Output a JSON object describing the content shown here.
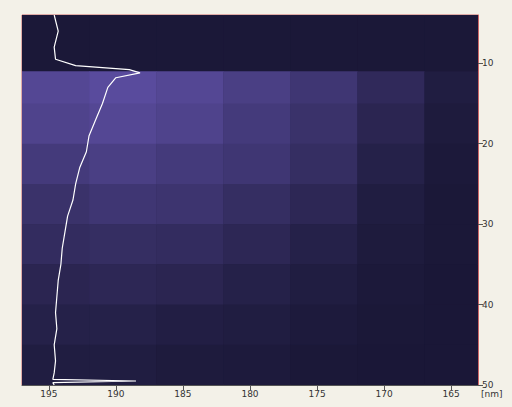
{
  "chart_data": {
    "type": "line",
    "x_label": "[nm]",
    "xlim": [
      197,
      163
    ],
    "xticks": [
      195,
      190,
      185,
      180,
      175,
      170,
      165
    ],
    "ylim": [
      50,
      4
    ],
    "yticks": [
      10,
      20,
      30,
      40,
      50
    ],
    "grid": false,
    "series": [
      {
        "color": "#ffffff",
        "x": [
          194.6,
          194.3,
          194.6,
          194.5,
          193,
          189,
          188.2,
          190,
          190.6,
          191,
          191.5,
          192,
          192.2,
          192.7,
          193,
          193.2,
          193.6,
          193.8,
          194,
          194.1,
          194.3,
          194.4,
          194.5,
          194.4,
          194.6,
          194.5,
          194.6,
          194.7,
          188.5,
          194.7,
          194.6
        ],
        "values": [
          4,
          6,
          8,
          9.5,
          10.3,
          10.8,
          11.2,
          11.8,
          13,
          15,
          17,
          19,
          21,
          23,
          25,
          27,
          29,
          31,
          33,
          35,
          37,
          39,
          41,
          43,
          45,
          47,
          48.5,
          49.3,
          49.5,
          49.7,
          50
        ]
      }
    ],
    "intensity": {
      "range": [
        0,
        1
      ],
      "x_edges": [
        197,
        192,
        187,
        182,
        177,
        172,
        167,
        163
      ],
      "y_edges": [
        4,
        11,
        15,
        20,
        25,
        30,
        35,
        40,
        45,
        50
      ],
      "cells": [
        [
          0.05,
          0.05,
          0.05,
          0.05,
          0.05,
          0.05,
          0.05
        ],
        [
          0.6,
          0.65,
          0.6,
          0.5,
          0.4,
          0.25,
          0.1
        ],
        [
          0.55,
          0.6,
          0.55,
          0.45,
          0.35,
          0.2,
          0.08
        ],
        [
          0.45,
          0.5,
          0.45,
          0.4,
          0.3,
          0.15,
          0.06
        ],
        [
          0.35,
          0.4,
          0.38,
          0.3,
          0.22,
          0.1,
          0.05
        ],
        [
          0.28,
          0.3,
          0.28,
          0.22,
          0.15,
          0.08,
          0.05
        ],
        [
          0.2,
          0.22,
          0.2,
          0.15,
          0.1,
          0.06,
          0.04
        ],
        [
          0.15,
          0.15,
          0.12,
          0.1,
          0.07,
          0.05,
          0.04
        ],
        [
          0.1,
          0.1,
          0.08,
          0.07,
          0.05,
          0.04,
          0.04
        ]
      ]
    }
  }
}
